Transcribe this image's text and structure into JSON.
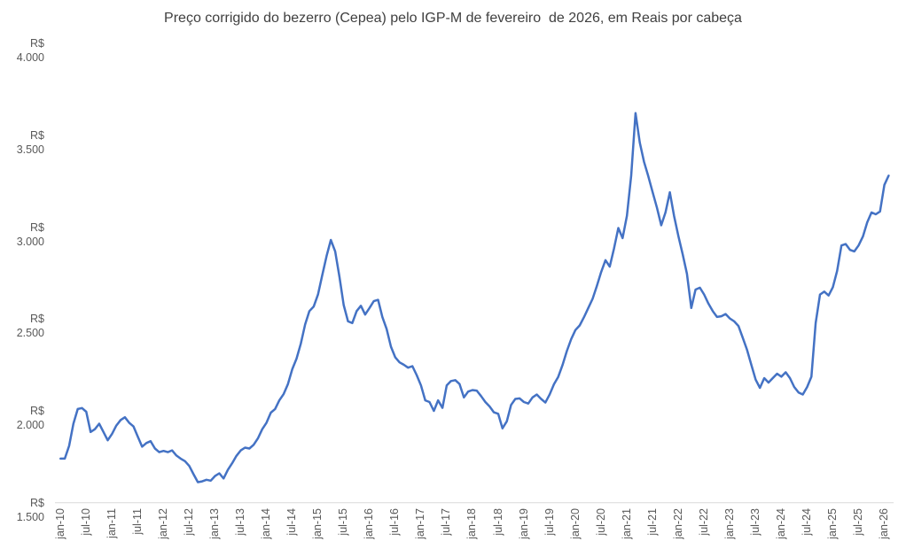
{
  "chart_data": {
    "type": "line",
    "title": "Preço corrigido do bezerro (Cepea) pelo IGP-M de fevereiro  de 2026, em Reais por cabeça",
    "xlabel": "",
    "ylabel": "",
    "legend": "none",
    "grid": false,
    "ylim": [
      1500,
      4000
    ],
    "y_ticks": [
      "R$ 4.000",
      "R$ 3.500",
      "R$ 3.000",
      "R$ 2.500",
      "R$ 2.000",
      "R$ 1.500"
    ],
    "y_tick_values": [
      4000,
      3500,
      3000,
      2500,
      2000,
      1500
    ],
    "x_tick_labels": [
      "jan-10",
      "jul-10",
      "jan-11",
      "jul-11",
      "jan-12",
      "jul-12",
      "jan-13",
      "jul-13",
      "jan-14",
      "jul-14",
      "jan-15",
      "jul-15",
      "jan-16",
      "jul-16",
      "jan-17",
      "jul-17",
      "jan-18",
      "jul-18",
      "jan-19",
      "jul-19",
      "jan-20",
      "jul-20",
      "jan-21",
      "jul-21",
      "jan-22",
      "jul-22",
      "jan-23",
      "jul-23",
      "jan-24",
      "jul-24",
      "jan-25",
      "jul-25",
      "jan-26"
    ],
    "colors": {
      "line": "#4472C4",
      "axis_line": "#D9D9D9",
      "tick_labels": "#595959",
      "title": "#404040"
    },
    "series": [
      {
        "name": "Preço corrigido do bezerro",
        "unit": "R$ por cabeça",
        "frequency": "monthly",
        "start_month": "jan-10",
        "end_month": "fev-26",
        "values": [
          1740,
          1740,
          1810,
          1930,
          2010,
          2015,
          1995,
          1885,
          1900,
          1930,
          1885,
          1840,
          1875,
          1920,
          1950,
          1965,
          1935,
          1915,
          1860,
          1805,
          1825,
          1835,
          1795,
          1775,
          1782,
          1775,
          1785,
          1757,
          1740,
          1726,
          1700,
          1655,
          1612,
          1616,
          1625,
          1620,
          1645,
          1660,
          1632,
          1680,
          1715,
          1755,
          1785,
          1800,
          1795,
          1815,
          1850,
          1900,
          1935,
          1990,
          2010,
          2057,
          2092,
          2146,
          2227,
          2284,
          2365,
          2470,
          2543,
          2568,
          2633,
          2738,
          2843,
          2930,
          2868,
          2730,
          2576,
          2487,
          2478,
          2543,
          2572,
          2524,
          2560,
          2597,
          2604,
          2511,
          2446,
          2349,
          2292,
          2264,
          2251,
          2235,
          2243,
          2195,
          2138,
          2057,
          2048,
          2000,
          2057,
          2016,
          2138,
          2162,
          2167,
          2146,
          2073,
          2105,
          2113,
          2110,
          2081,
          2048,
          2024,
          1992,
          1984,
          1905,
          1943,
          2032,
          2065,
          2068,
          2048,
          2040,
          2073,
          2089,
          2065,
          2045,
          2090,
          2145,
          2185,
          2250,
          2325,
          2390,
          2440,
          2465,
          2510,
          2560,
          2610,
          2680,
          2755,
          2820,
          2785,
          2885,
          2995,
          2940,
          3062,
          3280,
          3620,
          3460,
          3355,
          3275,
          3190,
          3105,
          3010,
          3080,
          3190,
          3060,
          2950,
          2852,
          2746,
          2560,
          2660,
          2670,
          2633,
          2584,
          2543,
          2511,
          2515,
          2527,
          2503,
          2487,
          2462,
          2397,
          2332,
          2251,
          2170,
          2125,
          2178,
          2154,
          2178,
          2202,
          2186,
          2210,
          2178,
          2130,
          2100,
          2089,
          2130,
          2186,
          2478,
          2633,
          2649,
          2628,
          2673,
          2762,
          2900,
          2908,
          2876,
          2868,
          2900,
          2949,
          3025,
          3080,
          3070,
          3085,
          3230,
          3280
        ]
      }
    ]
  }
}
